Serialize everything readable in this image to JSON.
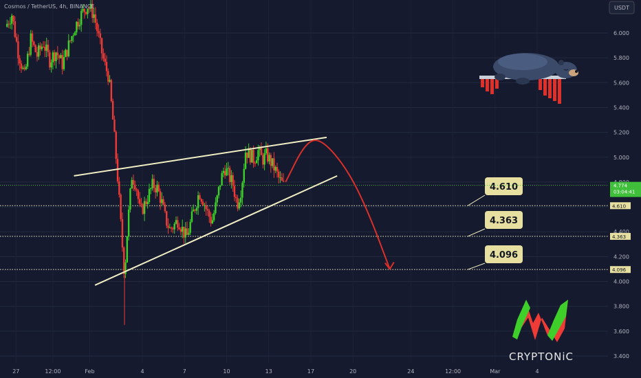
{
  "header": {
    "symbol_title": "Cosmos / TetherUS, 4h, BINANCE",
    "currency_badge": "USDT"
  },
  "chart_data": {
    "type": "candlestick",
    "symbol": "Cosmos / TetherUS",
    "interval": "4h",
    "exchange": "BINANCE",
    "quote_currency": "USDT",
    "y_ticks": [
      "6.000",
      "5.800",
      "5.600",
      "5.400",
      "5.200",
      "5.000",
      "4.800",
      "4.600",
      "4.400",
      "4.200",
      "4.000",
      "3.800",
      "3.600",
      "3.400"
    ],
    "x_ticks": [
      {
        "label": "27",
        "date": "2024-01-27"
      },
      {
        "label": "12:00",
        "date": "2024-01-27T12:00"
      },
      {
        "label": "Feb",
        "date": "2024-02-01"
      },
      {
        "label": "4",
        "date": "2024-02-04"
      },
      {
        "label": "7",
        "date": "2024-02-07"
      },
      {
        "label": "10",
        "date": "2024-02-10"
      },
      {
        "label": "13",
        "date": "2024-02-13"
      },
      {
        "label": "17",
        "date": "2024-02-17"
      },
      {
        "label": "20",
        "date": "2024-02-20"
      },
      {
        "label": "24",
        "date": "2024-02-24"
      },
      {
        "label": "12:00",
        "date": "2024-02-24T12:00"
      },
      {
        "label": "Mar",
        "date": "2024-03-01"
      },
      {
        "label": "4",
        "date": "2024-03-04"
      }
    ],
    "current_price": "4.774",
    "countdown": "03:04:41",
    "levels": [
      {
        "value": 4.61,
        "label": "4.610",
        "tag": "4.610"
      },
      {
        "value": 4.363,
        "label": "4.363",
        "tag": "4.363"
      },
      {
        "value": 4.096,
        "label": "4.096",
        "tag": "4.096"
      }
    ],
    "price_path": [
      {
        "t": 0,
        "p": 6.05
      },
      {
        "t": 0.6,
        "p": 6.15
      },
      {
        "t": 1.2,
        "p": 5.85
      },
      {
        "t": 1.8,
        "p": 5.65
      },
      {
        "t": 2.4,
        "p": 5.95
      },
      {
        "t": 3.0,
        "p": 5.82
      },
      {
        "t": 3.6,
        "p": 5.92
      },
      {
        "t": 4.2,
        "p": 5.78
      },
      {
        "t": 4.8,
        "p": 5.85
      },
      {
        "t": 5.4,
        "p": 5.75
      },
      {
        "t": 6.0,
        "p": 5.9
      },
      {
        "t": 6.6,
        "p": 6.05
      },
      {
        "t": 7.2,
        "p": 6.15
      },
      {
        "t": 7.8,
        "p": 6.22
      },
      {
        "t": 8.4,
        "p": 6.15
      },
      {
        "t": 9.0,
        "p": 5.9
      },
      {
        "t": 9.4,
        "p": 5.75
      },
      {
        "t": 9.8,
        "p": 5.65
      },
      {
        "t": 10.2,
        "p": 5.3
      },
      {
        "t": 10.6,
        "p": 4.9
      },
      {
        "t": 11.0,
        "p": 4.4
      },
      {
        "t": 11.3,
        "p": 4.05
      },
      {
        "t": 11.6,
        "p": 4.45
      },
      {
        "t": 12.0,
        "p": 4.85
      },
      {
        "t": 12.4,
        "p": 4.78
      },
      {
        "t": 12.8,
        "p": 4.55
      },
      {
        "t": 13.2,
        "p": 4.62
      },
      {
        "t": 13.6,
        "p": 4.7
      },
      {
        "t": 14.0,
        "p": 4.78
      },
      {
        "t": 14.4,
        "p": 4.75
      },
      {
        "t": 14.8,
        "p": 4.65
      },
      {
        "t": 15.2,
        "p": 4.5
      },
      {
        "t": 15.6,
        "p": 4.42
      },
      {
        "t": 16.0,
        "p": 4.45
      },
      {
        "t": 16.4,
        "p": 4.5
      },
      {
        "t": 16.8,
        "p": 4.42
      },
      {
        "t": 17.2,
        "p": 4.35
      },
      {
        "t": 17.6,
        "p": 4.48
      },
      {
        "t": 18.0,
        "p": 4.6
      },
      {
        "t": 18.4,
        "p": 4.72
      },
      {
        "t": 18.8,
        "p": 4.65
      },
      {
        "t": 19.2,
        "p": 4.55
      },
      {
        "t": 19.6,
        "p": 4.48
      },
      {
        "t": 20.0,
        "p": 4.62
      },
      {
        "t": 20.4,
        "p": 4.8
      },
      {
        "t": 20.8,
        "p": 4.92
      },
      {
        "t": 21.2,
        "p": 4.85
      },
      {
        "t": 21.6,
        "p": 4.78
      },
      {
        "t": 22.0,
        "p": 4.62
      },
      {
        "t": 22.4,
        "p": 4.75
      },
      {
        "t": 22.8,
        "p": 5.05
      },
      {
        "t": 23.2,
        "p": 5.02
      },
      {
        "t": 23.6,
        "p": 4.98
      },
      {
        "t": 24.0,
        "p": 5.05
      },
      {
        "t": 24.4,
        "p": 4.98
      },
      {
        "t": 24.8,
        "p": 5.02
      },
      {
        "t": 25.2,
        "p": 4.96
      },
      {
        "t": 25.6,
        "p": 4.9
      },
      {
        "t": 26.0,
        "p": 4.82
      },
      {
        "t": 26.4,
        "p": 4.77
      }
    ],
    "price_range": [
      3.4,
      6.2
    ],
    "time_range": [
      0,
      55
    ],
    "x_tick_positions": [
      1.0,
      4.5,
      8.0,
      13.0,
      17.0,
      21.0,
      25.0,
      29.0,
      33.0,
      38.5,
      42.5,
      46.5,
      50.5
    ],
    "wedge_upper": [
      {
        "t": 6.5,
        "p": 4.85
      },
      {
        "t": 30.5,
        "p": 5.16
      }
    ],
    "wedge_lower": [
      {
        "t": 8.5,
        "p": 3.97
      },
      {
        "t": 31.5,
        "p": 4.85
      }
    ],
    "projection_path": [
      {
        "t": 26.6,
        "p": 4.8
      },
      {
        "t": 28.5,
        "p": 5.12
      },
      {
        "t": 30.0,
        "p": 5.15
      },
      {
        "t": 32.5,
        "p": 4.9
      },
      {
        "t": 34.5,
        "p": 4.55
      },
      {
        "t": 36.5,
        "p": 4.1
      }
    ],
    "colors": {
      "background": "#151a2e",
      "bull": "#26a69a",
      "bull_bright": "#3fcf2a",
      "bear": "#ef3b36",
      "wedge_line": "#f2efc4",
      "projection": "#d9302a",
      "level_line": "#f2efc4",
      "level_label_bg": "#e6dfa0",
      "price_tag_bg": "#3fbf3a",
      "axis_text": "#b2b5be"
    }
  },
  "decorations": {
    "bear_icon": "sleeping-bear-icon",
    "logo_icon": "cryptonic-logo-icon",
    "logo_text": "CRYPTONiC"
  }
}
